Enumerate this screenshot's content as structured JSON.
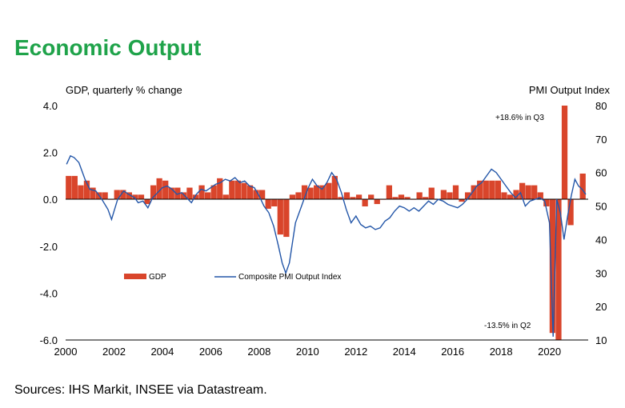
{
  "title": "Economic Output",
  "source": "Sources: IHS Markit, INSEE via Datastream.",
  "chart_data": {
    "type": "bar",
    "left_axis_label": "GDP, quarterly % change",
    "right_axis_label": "PMI Output Index",
    "left_ylim": [
      -6.0,
      4.0
    ],
    "right_ylim": [
      10,
      80
    ],
    "left_ticks": [
      "4.0",
      "2.0",
      "0.0",
      "-2.0",
      "-4.0",
      "-6.0"
    ],
    "left_tick_values": [
      4,
      2,
      0,
      -2,
      -4,
      -6
    ],
    "right_ticks": [
      "80",
      "70",
      "60",
      "50",
      "40",
      "30",
      "20",
      "10"
    ],
    "right_tick_values": [
      80,
      70,
      60,
      50,
      40,
      30,
      20,
      10
    ],
    "x_ticks": [
      "2000",
      "2002",
      "2004",
      "2006",
      "2008",
      "2010",
      "2012",
      "2014",
      "2016",
      "2018",
      "2020"
    ],
    "x_tick_values": [
      2000,
      2002,
      2004,
      2006,
      2008,
      2010,
      2012,
      2014,
      2016,
      2018,
      2020
    ],
    "x_range": [
      2000,
      2021.6
    ],
    "annotations": [
      "+18.6% in Q3",
      "-13.5% in Q2"
    ],
    "colors": {
      "gdp": "#d9452b",
      "pmi": "#2356a8",
      "title": "#1fa34a"
    },
    "legend": {
      "placement": "inside-lower-left",
      "gdp_label": "GDP",
      "pmi_label": "Composite PMI Output Index"
    },
    "gdp": {
      "name": "GDP",
      "x": [
        2000.125,
        2000.375,
        2000.625,
        2000.875,
        2001.125,
        2001.375,
        2001.625,
        2001.875,
        2002.125,
        2002.375,
        2002.625,
        2002.875,
        2003.125,
        2003.375,
        2003.625,
        2003.875,
        2004.125,
        2004.375,
        2004.625,
        2004.875,
        2005.125,
        2005.375,
        2005.625,
        2005.875,
        2006.125,
        2006.375,
        2006.625,
        2006.875,
        2007.125,
        2007.375,
        2007.625,
        2007.875,
        2008.125,
        2008.375,
        2008.625,
        2008.875,
        2009.125,
        2009.375,
        2009.625,
        2009.875,
        2010.125,
        2010.375,
        2010.625,
        2010.875,
        2011.125,
        2011.375,
        2011.625,
        2011.875,
        2012.125,
        2012.375,
        2012.625,
        2012.875,
        2013.125,
        2013.375,
        2013.625,
        2013.875,
        2014.125,
        2014.375,
        2014.625,
        2014.875,
        2015.125,
        2015.375,
        2015.625,
        2015.875,
        2016.125,
        2016.375,
        2016.625,
        2016.875,
        2017.125,
        2017.375,
        2017.625,
        2017.875,
        2018.125,
        2018.375,
        2018.625,
        2018.875,
        2019.125,
        2019.375,
        2019.625,
        2019.875,
        2020.125,
        2020.375,
        2020.625,
        2020.875,
        2021.125,
        2021.375
      ],
      "values": [
        1.0,
        1.0,
        0.6,
        0.8,
        0.5,
        0.3,
        0.3,
        0.0,
        0.4,
        0.4,
        0.3,
        0.2,
        0.2,
        -0.2,
        0.6,
        0.9,
        0.8,
        0.5,
        0.5,
        0.3,
        0.5,
        0.2,
        0.6,
        0.3,
        0.6,
        0.9,
        0.2,
        0.8,
        0.8,
        0.7,
        0.6,
        0.4,
        0.4,
        -0.4,
        -0.3,
        -1.5,
        -1.6,
        0.2,
        0.3,
        0.6,
        0.5,
        0.6,
        0.6,
        0.7,
        1.0,
        0.1,
        0.3,
        0.1,
        0.2,
        -0.3,
        0.2,
        -0.2,
        0.0,
        0.6,
        0.1,
        0.2,
        0.1,
        0.0,
        0.3,
        0.1,
        0.5,
        0.0,
        0.4,
        0.3,
        0.6,
        -0.1,
        0.3,
        0.6,
        0.8,
        0.8,
        0.8,
        0.8,
        0.3,
        0.2,
        0.4,
        0.7,
        0.6,
        0.6,
        0.3,
        -0.3,
        -5.7,
        -13.5,
        18.6,
        -1.1,
        0.0,
        1.1
      ]
    },
    "pmi": {
      "name": "Composite PMI Output Index",
      "x": [
        2000.04,
        2000.2,
        2000.35,
        2000.55,
        2000.8,
        2001.0,
        2001.25,
        2001.5,
        2001.75,
        2001.9,
        2002.0,
        2002.15,
        2002.4,
        2002.6,
        2002.85,
        2003.0,
        2003.2,
        2003.4,
        2003.6,
        2003.8,
        2004.0,
        2004.2,
        2004.4,
        2004.6,
        2004.8,
        2005.0,
        2005.2,
        2005.4,
        2005.6,
        2005.8,
        2006.0,
        2006.2,
        2006.4,
        2006.6,
        2006.8,
        2007.0,
        2007.2,
        2007.4,
        2007.6,
        2007.8,
        2008.0,
        2008.2,
        2008.4,
        2008.6,
        2008.8,
        2008.95,
        2009.1,
        2009.25,
        2009.5,
        2009.75,
        2010.0,
        2010.2,
        2010.4,
        2010.6,
        2010.8,
        2011.0,
        2011.2,
        2011.4,
        2011.6,
        2011.8,
        2012.0,
        2012.2,
        2012.4,
        2012.6,
        2012.8,
        2013.0,
        2013.2,
        2013.4,
        2013.6,
        2013.8,
        2014.0,
        2014.2,
        2014.4,
        2014.6,
        2014.8,
        2015.0,
        2015.2,
        2015.4,
        2015.6,
        2015.8,
        2016.0,
        2016.2,
        2016.4,
        2016.6,
        2016.8,
        2017.0,
        2017.2,
        2017.4,
        2017.6,
        2017.8,
        2018.0,
        2018.2,
        2018.4,
        2018.6,
        2018.8,
        2019.0,
        2019.2,
        2019.4,
        2019.6,
        2019.8,
        2020.0,
        2020.15,
        2020.3,
        2020.45,
        2020.6,
        2020.75,
        2020.9,
        2021.05,
        2021.2,
        2021.35,
        2021.5
      ],
      "values": [
        62.5,
        65.0,
        64.5,
        63.0,
        58.0,
        55.0,
        54.5,
        52.0,
        49.0,
        46.0,
        48.5,
        52.0,
        54.5,
        53.5,
        52.5,
        51.0,
        51.5,
        49.5,
        52.5,
        54.0,
        55.5,
        56.0,
        55.0,
        53.5,
        54.0,
        52.5,
        51.0,
        53.5,
        55.0,
        54.5,
        55.5,
        56.5,
        57.0,
        58.0,
        57.5,
        58.5,
        57.0,
        57.5,
        56.0,
        55.5,
        53.0,
        50.0,
        48.0,
        44.0,
        38.0,
        33.0,
        30.0,
        33.0,
        45.0,
        50.0,
        55.0,
        58.0,
        56.0,
        55.0,
        57.0,
        60.0,
        58.0,
        54.0,
        49.0,
        45.0,
        47.0,
        44.5,
        43.5,
        44.0,
        43.0,
        43.5,
        45.5,
        46.5,
        48.5,
        50.0,
        49.5,
        48.5,
        49.5,
        48.5,
        50.0,
        51.5,
        50.5,
        52.0,
        51.5,
        50.5,
        50.0,
        49.5,
        50.5,
        52.0,
        54.0,
        56.0,
        57.0,
        59.0,
        61.0,
        60.0,
        58.0,
        56.0,
        54.0,
        52.5,
        54.0,
        50.0,
        51.5,
        52.0,
        52.5,
        51.5,
        45.0,
        11.0,
        52.0,
        48.0,
        40.0,
        47.0,
        53.0,
        58.0,
        56.0,
        55.0,
        53.5
      ]
    }
  }
}
